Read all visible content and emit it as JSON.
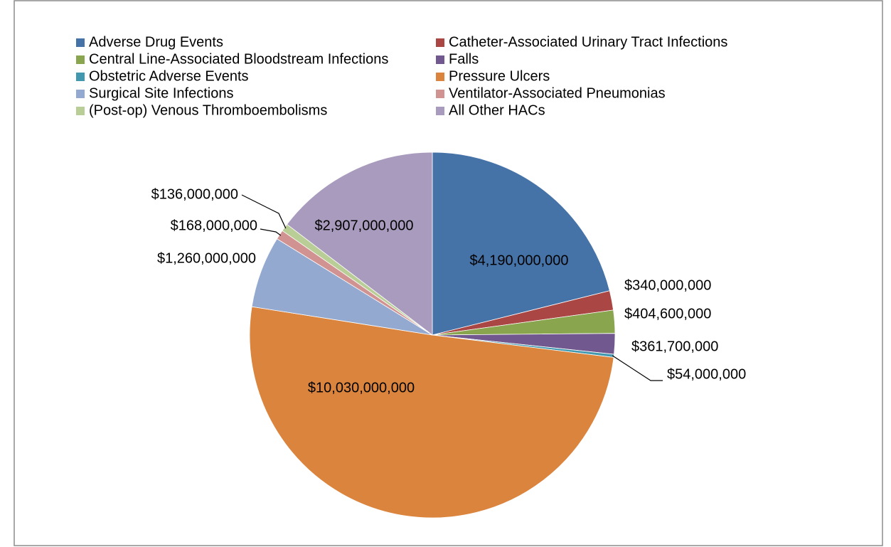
{
  "chart_data": {
    "type": "pie",
    "categories": [
      "Adverse Drug Events",
      "Catheter-Associated Urinary Tract Infections",
      "Central Line-Associated Bloodstream Infections",
      "Falls",
      "Obstetric Adverse Events",
      "Pressure Ulcers",
      "Surgical Site Infections",
      "Ventilator-Associated Pneumonias",
      "(Post-op) Venous Thromboembolisms",
      "All Other HACs"
    ],
    "values": [
      4190000000,
      340000000,
      404600000,
      361700000,
      54000000,
      10030000000,
      1260000000,
      168000000,
      136000000,
      2907000000
    ],
    "value_labels": [
      "$4,190,000,000",
      "$340,000,000",
      "$404,600,000",
      "$361,700,000",
      "$54,000,000",
      "$10,030,000,000",
      "$1,260,000,000",
      "$168,000,000",
      "$136,000,000",
      "$2,907,000,000"
    ],
    "colors": [
      "#4572a7",
      "#aa4643",
      "#89a54e",
      "#71588f",
      "#4198af",
      "#db843d",
      "#93a9cf",
      "#d19392",
      "#b9cd96",
      "#a99bbd"
    ],
    "legend": "top"
  }
}
